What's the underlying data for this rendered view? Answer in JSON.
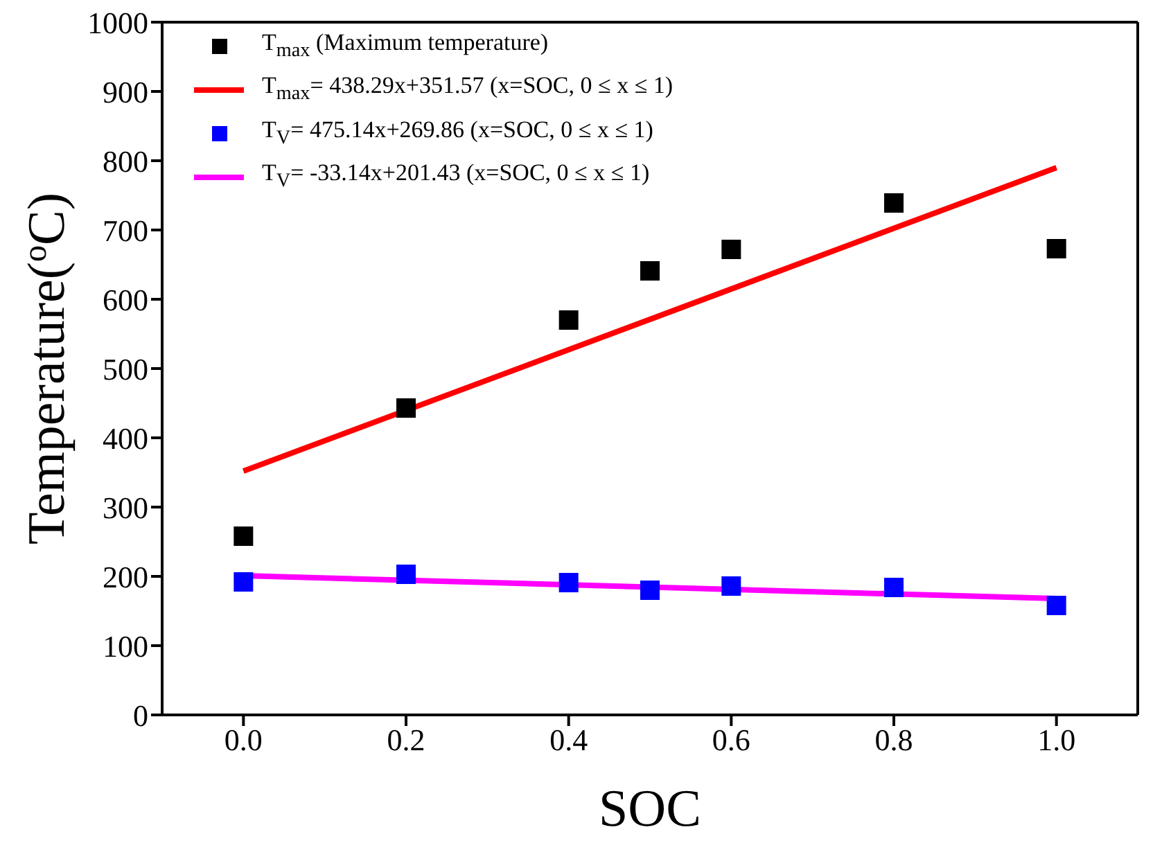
{
  "chart_data": {
    "type": "scatter",
    "xlabel": "SOC",
    "ylabel": "Temperature($^{o}$C)",
    "xlim": [
      -0.1,
      1.1
    ],
    "xticks": [
      {
        "value": 0,
        "label": "0.0"
      },
      {
        "value": 0.2,
        "label": "0.2"
      },
      {
        "value": 0.4,
        "label": "0.4"
      },
      {
        "value": 0.6,
        "label": "0.6"
      },
      {
        "value": 0.8,
        "label": "0.8"
      },
      {
        "value": 1,
        "label": "1.0"
      }
    ],
    "ylim": [
      0,
      1000
    ],
    "yticks": [
      0,
      100,
      200,
      300,
      400,
      500,
      600,
      700,
      800,
      900,
      1000
    ],
    "legend": "top left",
    "series": [
      {
        "name": "T$_{max}$ (Maximum temperature)",
        "marker": "square",
        "color": "#000000",
        "x": [
          0,
          0.2,
          0.4,
          0.5,
          0.6,
          0.8,
          1.0
        ],
        "values": [
          258,
          443,
          570,
          641,
          672,
          739,
          673
        ]
      },
      {
        "name": "T$_{max}$= 438.29x+351.57 (x=SOC, 0 ≤ x ≤ 1)",
        "type": "line",
        "marker": "none",
        "color": "#ff0000",
        "x": [
          0,
          1
        ],
        "values": [
          352,
          790
        ]
      },
      {
        "name": "T$_{V}$= 475.14x+269.86 (x=SOC, 0 ≤ x ≤ 1)",
        "marker": "square",
        "color": "#0000ff",
        "x": [
          0,
          0.2,
          0.4,
          0.5,
          0.6,
          0.8,
          1.0
        ],
        "values": [
          192,
          203,
          191,
          180,
          186,
          184,
          158
        ]
      },
      {
        "name": "T$_{V}$= -33.14x+201.43 (x=SOC, 0 ≤ x ≤ 1)",
        "type": "line",
        "marker": "none",
        "color": "#ff00ff",
        "x": [
          0,
          1
        ],
        "values": [
          201,
          168
        ]
      }
    ]
  }
}
